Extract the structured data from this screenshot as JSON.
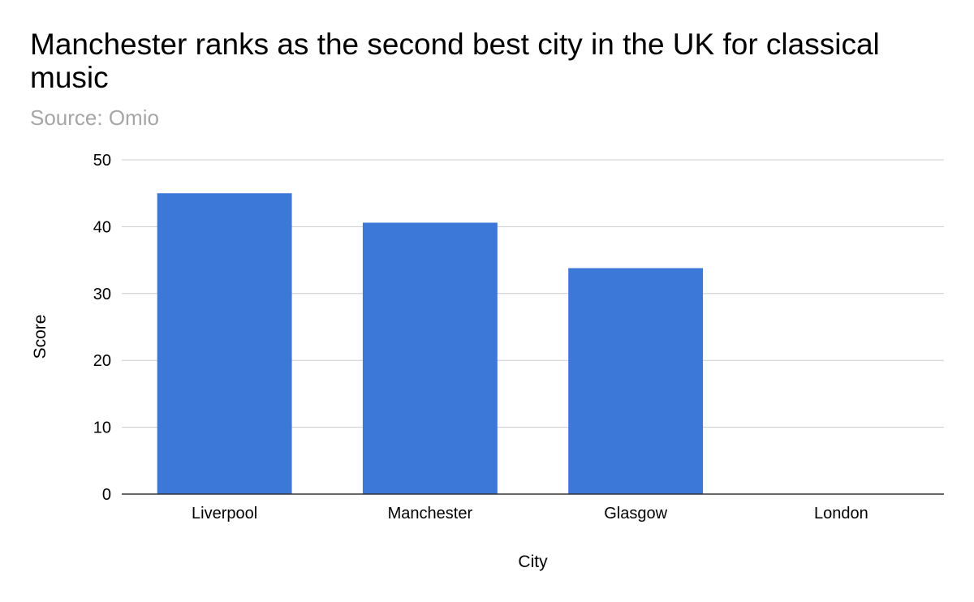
{
  "chart_data": {
    "type": "bar",
    "title": "Manchester ranks as the second best city in the UK for classical music",
    "subtitle": "Source: Omio",
    "xlabel": "City",
    "ylabel": "Score",
    "categories": [
      "Liverpool",
      "Manchester",
      "Glasgow",
      "London"
    ],
    "values": [
      45,
      40.6,
      33.8,
      0
    ],
    "ylim": [
      0,
      50
    ],
    "yticks": [
      "0",
      "10",
      "20",
      "30",
      "40",
      "50"
    ],
    "grid": true,
    "legend": "none",
    "colors": {
      "bar": "#3c78d8",
      "grid": "#cccccc",
      "axis": "#333333",
      "subtitle": "#a6a6a6"
    }
  }
}
